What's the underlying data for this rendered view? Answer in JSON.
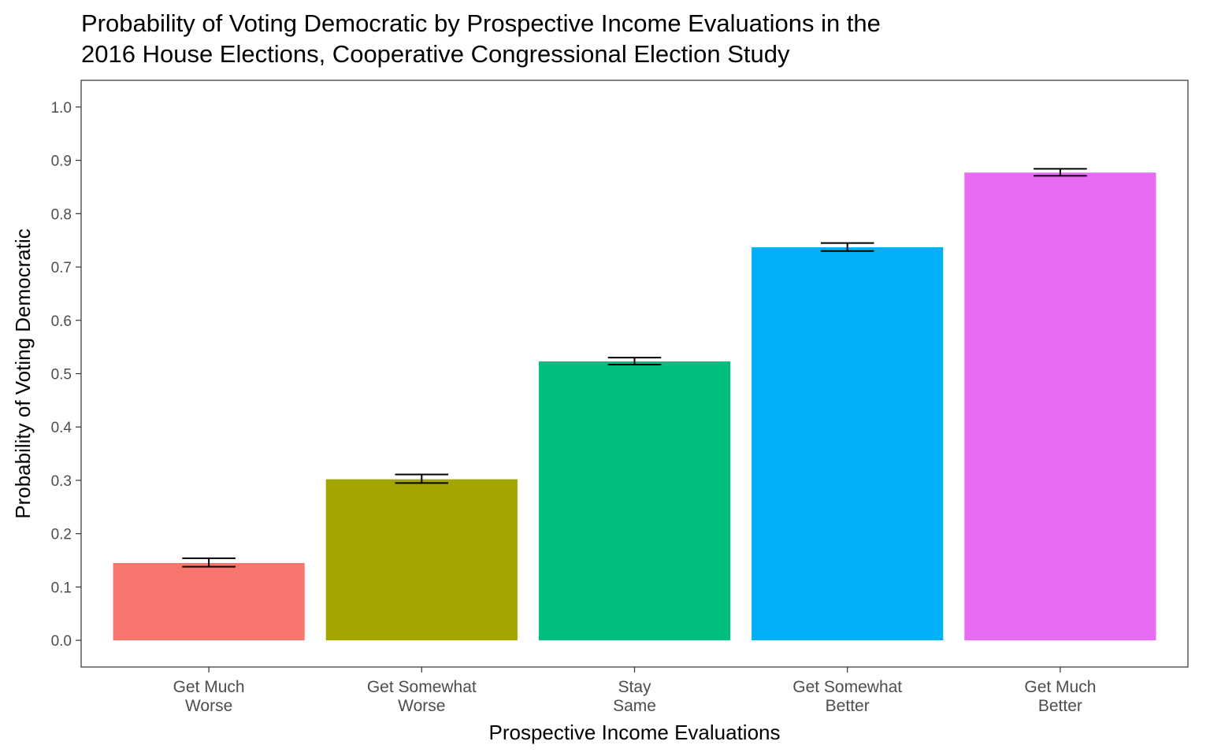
{
  "chart_data": {
    "type": "bar",
    "title_lines": [
      "Probability of Voting Democratic by Prospective Income Evaluations in the",
      "2016 House Elections, Cooperative Congressional Election Study"
    ],
    "xlabel": "Prospective Income Evaluations",
    "ylabel": "Probability of Voting Democratic",
    "ylim": [
      -0.05,
      1.05
    ],
    "yticks": [
      "0.0",
      "0.1",
      "0.2",
      "0.3",
      "0.4",
      "0.5",
      "0.6",
      "0.7",
      "0.8",
      "0.9",
      "1.0"
    ],
    "categories": [
      [
        "Get Much",
        "Worse"
      ],
      [
        "Get Somewhat",
        "Worse"
      ],
      [
        "Stay",
        "Same"
      ],
      [
        "Get Somewhat",
        "Better"
      ],
      [
        "Get Much",
        "Better"
      ]
    ],
    "values": [
      0.145,
      0.302,
      0.523,
      0.737,
      0.877
    ],
    "error_low": [
      0.138,
      0.295,
      0.517,
      0.73,
      0.871
    ],
    "error_high": [
      0.154,
      0.311,
      0.53,
      0.745,
      0.884
    ],
    "colors": [
      "#F8766D",
      "#A3A500",
      "#00BF7D",
      "#00B0F6",
      "#E76BF3"
    ],
    "grid": false,
    "legend": "none"
  }
}
